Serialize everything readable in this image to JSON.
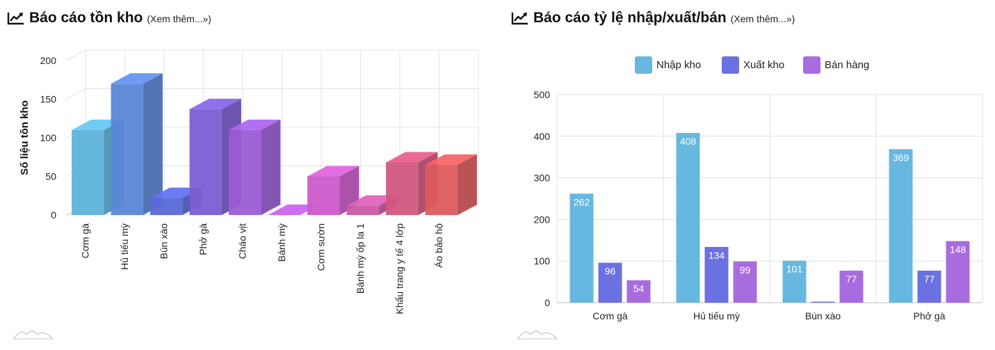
{
  "left": {
    "title": "Báo cáo tồn kho",
    "more_link": "(Xem thêm...»)",
    "icon": "line-chart-icon"
  },
  "right": {
    "title": "Báo cáo tỷ lệ nhập/xuất/bán",
    "more_link": "(Xem thêm...»)",
    "icon": "line-chart-icon"
  },
  "chart_data": [
    {
      "type": "bar",
      "title": "Báo cáo tồn kho",
      "xlabel": "",
      "ylabel": "Số liệu tồn kho",
      "ylim": [
        0,
        200
      ],
      "yticks": [
        0,
        50,
        100,
        150,
        200
      ],
      "grid": true,
      "categories": [
        "Cơm gà",
        "Hủ tiếu mỳ",
        "Bún xào",
        "Phở gà",
        "Cháo vịt",
        "Bánh mỳ",
        "Cơm sườn",
        "Bánh mỳ ốp la 1",
        "Khẩu trang y tế 4 lớp",
        "Áo bảo hộ"
      ],
      "values": [
        110,
        170,
        22,
        137,
        110,
        0,
        50,
        12,
        68,
        65
      ],
      "colors": [
        "#5eb3da",
        "#5b86d6",
        "#5a68d8",
        "#7b5ed3",
        "#9c5cd6",
        "#b65ad6",
        "#cc5ac9",
        "#c95aa6",
        "#d1577e",
        "#dd5a5d"
      ]
    },
    {
      "type": "bar",
      "title": "Báo cáo tỷ lệ nhập/xuất/bán",
      "xlabel": "",
      "ylabel": "",
      "ylim": [
        0,
        500
      ],
      "yticks": [
        0,
        100,
        200,
        300,
        400,
        500
      ],
      "grid": true,
      "legend": "top",
      "categories": [
        "Cơm gà",
        "Hủ tiếu mỳ",
        "Bún xào",
        "Phở gà"
      ],
      "series": [
        {
          "name": "Nhập kho",
          "color": "#67b8de",
          "values": [
            262,
            408,
            101,
            369
          ],
          "labels": [
            "262",
            "408",
            "101",
            "369"
          ]
        },
        {
          "name": "Xuất kho",
          "color": "#6b71e0",
          "values": [
            96,
            134,
            0,
            77
          ],
          "labels": [
            "96",
            "134",
            "",
            "77"
          ]
        },
        {
          "name": "Bán hàng",
          "color": "#a86cdf",
          "values": [
            54,
            99,
            77,
            148
          ],
          "labels": [
            "54",
            "99",
            "77",
            "148"
          ]
        }
      ]
    }
  ]
}
